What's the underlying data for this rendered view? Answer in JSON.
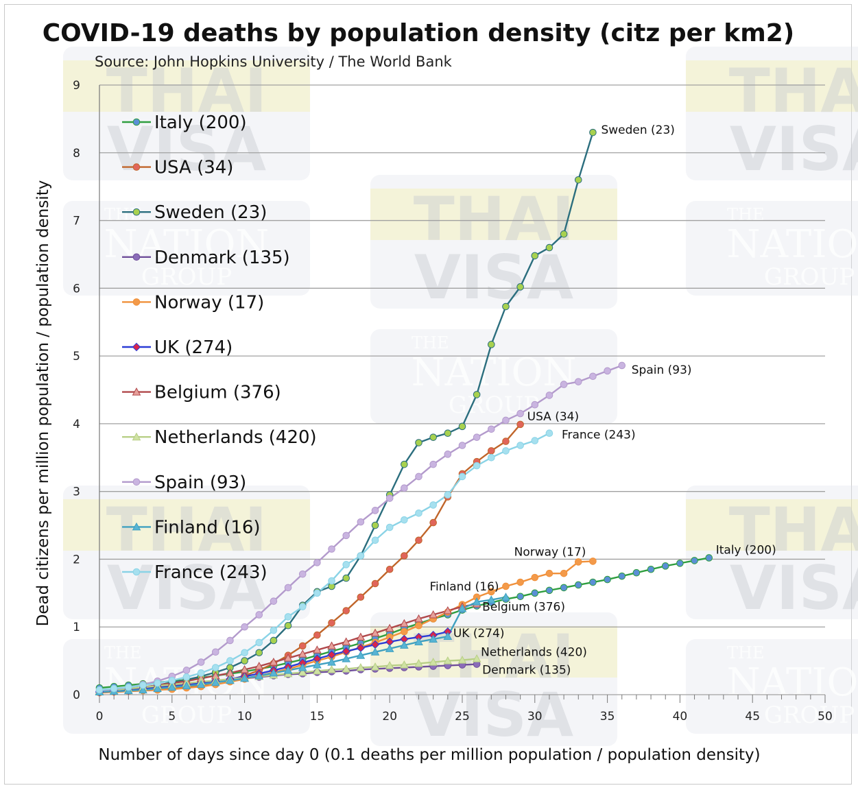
{
  "chart_data": {
    "type": "line",
    "title": "COVID-19 deaths by population density (citz per km2)",
    "subtitle": "Source: John Hopkins University / The World Bank",
    "xlabel": "Number of days since day 0 (0.1 deaths per million population / population density)",
    "ylabel": "Dead citizens per million population / population density",
    "xlim": [
      0,
      50
    ],
    "ylim": [
      0,
      9
    ],
    "xticks": [
      0,
      5,
      10,
      15,
      20,
      25,
      30,
      35,
      40,
      45,
      50
    ],
    "yticks": [
      0,
      1,
      2,
      3,
      4,
      5,
      6,
      7,
      8,
      9
    ],
    "grid": "horizontal",
    "legend_position": "top-left",
    "series": [
      {
        "name": "Italy (200)",
        "color": "#2e9e3e",
        "markerColor": "#5b8fd6",
        "marker": "circle",
        "end_label": "Italy (200)",
        "values": [
          0.1,
          0.12,
          0.14,
          0.16,
          0.18,
          0.2,
          0.22,
          0.25,
          0.28,
          0.31,
          0.34,
          0.38,
          0.42,
          0.47,
          0.52,
          0.58,
          0.64,
          0.7,
          0.76,
          0.83,
          0.9,
          0.98,
          1.05,
          1.12,
          1.18,
          1.25,
          1.31,
          1.36,
          1.41,
          1.45,
          1.5,
          1.54,
          1.58,
          1.62,
          1.66,
          1.7,
          1.75,
          1.8,
          1.85,
          1.9,
          1.94,
          1.98,
          2.02
        ]
      },
      {
        "name": "USA (34)",
        "color": "#c0652a",
        "markerColor": "#e0655a",
        "marker": "circle",
        "end_label": "USA (34)",
        "values": [
          0.03,
          0.04,
          0.05,
          0.06,
          0.07,
          0.09,
          0.11,
          0.14,
          0.18,
          0.22,
          0.28,
          0.36,
          0.46,
          0.58,
          0.72,
          0.88,
          1.06,
          1.24,
          1.44,
          1.64,
          1.85,
          2.05,
          2.28,
          2.54,
          2.92,
          3.26,
          3.44,
          3.6,
          3.74,
          3.99
        ]
      },
      {
        "name": "Sweden (23)",
        "color": "#2b6e7e",
        "markerColor": "#a8d14f",
        "marker": "circle",
        "end_label": "Sweden (23)",
        "values": [
          0.05,
          0.07,
          0.09,
          0.11,
          0.14,
          0.18,
          0.22,
          0.27,
          0.33,
          0.4,
          0.5,
          0.62,
          0.8,
          1.02,
          1.32,
          1.52,
          1.6,
          1.72,
          2.05,
          2.5,
          2.95,
          3.4,
          3.72,
          3.8,
          3.86,
          3.96,
          4.43,
          5.17,
          5.73,
          6.02,
          6.48,
          6.6,
          6.8,
          7.6,
          8.3
        ]
      },
      {
        "name": "Denmark (135)",
        "color": "#6f4e9a",
        "markerColor": "#8a6cb8",
        "marker": "circle",
        "end_label": "Denmark (135)",
        "values": [
          0.04,
          0.06,
          0.08,
          0.1,
          0.12,
          0.14,
          0.16,
          0.18,
          0.2,
          0.22,
          0.24,
          0.26,
          0.28,
          0.3,
          0.31,
          0.33,
          0.34,
          0.35,
          0.37,
          0.38,
          0.39,
          0.4,
          0.41,
          0.42,
          0.43,
          0.44,
          0.45
        ]
      },
      {
        "name": "Norway (17)",
        "color": "#f0903a",
        "markerColor": "#f39a4a",
        "marker": "circle",
        "end_label": "Norway (17)",
        "values": [
          0.03,
          0.04,
          0.05,
          0.06,
          0.07,
          0.08,
          0.1,
          0.12,
          0.15,
          0.19,
          0.23,
          0.28,
          0.33,
          0.38,
          0.44,
          0.5,
          0.56,
          0.63,
          0.7,
          0.77,
          0.85,
          0.93,
          1.02,
          1.12,
          1.22,
          1.33,
          1.44,
          1.52,
          1.6,
          1.66,
          1.73,
          1.79,
          1.79,
          1.96,
          1.97
        ]
      },
      {
        "name": "UK (274)",
        "color": "#2a3bd6",
        "markerColor": "#d9264a",
        "marker": "diamond",
        "end_label": "UK (274)",
        "values": [
          0.04,
          0.05,
          0.06,
          0.08,
          0.1,
          0.12,
          0.14,
          0.17,
          0.2,
          0.23,
          0.27,
          0.31,
          0.36,
          0.41,
          0.47,
          0.53,
          0.59,
          0.64,
          0.69,
          0.74,
          0.78,
          0.82,
          0.85,
          0.88,
          0.93
        ]
      },
      {
        "name": "Belgium (376)",
        "color": "#b0474a",
        "markerColor": "#e6a09a",
        "marker": "triangle",
        "end_label": "Belgium (376)",
        "values": [
          0.05,
          0.07,
          0.09,
          0.11,
          0.14,
          0.17,
          0.2,
          0.24,
          0.28,
          0.32,
          0.37,
          0.42,
          0.48,
          0.54,
          0.6,
          0.66,
          0.72,
          0.78,
          0.85,
          0.91,
          0.98,
          1.05,
          1.12,
          1.18,
          1.24,
          1.3,
          1.34
        ]
      },
      {
        "name": "Netherlands (420)",
        "color": "#b8cf86",
        "markerColor": "#cfe2a3",
        "marker": "triangle",
        "end_label": "Netherlands (420)",
        "values": [
          0.05,
          0.07,
          0.09,
          0.11,
          0.13,
          0.15,
          0.17,
          0.19,
          0.21,
          0.23,
          0.25,
          0.27,
          0.29,
          0.31,
          0.33,
          0.35,
          0.37,
          0.38,
          0.4,
          0.41,
          0.43,
          0.44,
          0.46,
          0.48,
          0.5,
          0.51,
          0.53
        ]
      },
      {
        "name": "Spain (93)",
        "color": "#b39acc",
        "markerColor": "#c9b4e0",
        "marker": "circle",
        "end_label": "Spain (93)",
        "values": [
          0.06,
          0.08,
          0.11,
          0.15,
          0.2,
          0.27,
          0.36,
          0.48,
          0.63,
          0.8,
          1.0,
          1.18,
          1.38,
          1.58,
          1.78,
          1.95,
          2.15,
          2.35,
          2.55,
          2.72,
          2.9,
          3.05,
          3.22,
          3.4,
          3.55,
          3.68,
          3.8,
          3.92,
          4.05,
          4.15,
          4.28,
          4.42,
          4.58,
          4.62,
          4.7,
          4.78,
          4.86
        ]
      },
      {
        "name": "Finland (16)",
        "color": "#3fa0c0",
        "markerColor": "#58b4d4",
        "marker": "triangle",
        "end_label": "Finland (16)",
        "values": [
          0.04,
          0.05,
          0.06,
          0.07,
          0.09,
          0.11,
          0.13,
          0.15,
          0.18,
          0.21,
          0.24,
          0.28,
          0.32,
          0.36,
          0.4,
          0.44,
          0.48,
          0.53,
          0.58,
          0.63,
          0.68,
          0.73,
          0.78,
          0.82,
          0.86,
          1.27,
          1.37,
          1.4,
          1.44
        ]
      },
      {
        "name": "France (243)",
        "color": "#8ad3e6",
        "markerColor": "#a6e0ef",
        "marker": "circle",
        "end_label": "France (243)",
        "values": [
          0.07,
          0.09,
          0.11,
          0.14,
          0.17,
          0.21,
          0.26,
          0.32,
          0.4,
          0.5,
          0.62,
          0.77,
          0.95,
          1.15,
          1.3,
          1.5,
          1.68,
          1.92,
          2.05,
          2.28,
          2.47,
          2.58,
          2.68,
          2.8,
          2.95,
          3.22,
          3.38,
          3.5,
          3.6,
          3.68,
          3.75,
          3.86
        ]
      }
    ]
  },
  "watermark": {
    "brand1": "THAI",
    "brand2": "VISA",
    "brand3": "THE",
    "brand4": "NATION",
    "brand5": "GROUP"
  }
}
